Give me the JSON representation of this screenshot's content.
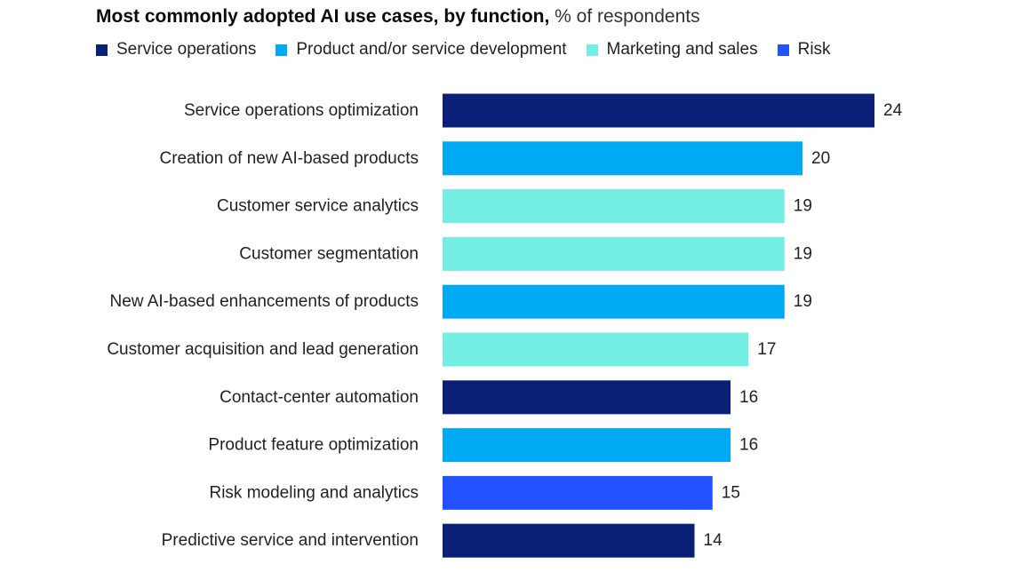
{
  "chart_data": {
    "type": "bar",
    "orientation": "horizontal",
    "title": "Most commonly adopted AI use cases, by function,",
    "subtitle": "% of respondents",
    "legend": [
      {
        "name": "Service operations",
        "color": "#0a1f78"
      },
      {
        "name": "Product and/or service development",
        "color": "#00a9f4"
      },
      {
        "name": "Marketing and sales",
        "color": "#74ede3"
      },
      {
        "name": "Risk",
        "color": "#2251ff"
      }
    ],
    "categories": [
      "Service operations optimization",
      "Creation of new AI-based products",
      "Customer service analytics",
      "Customer segmentation",
      "New AI-based enhancements of products",
      "Customer acquisition and lead generation",
      "Contact-center automation",
      "Product feature optimization",
      "Risk modeling and analytics",
      "Predictive service and intervention"
    ],
    "values": [
      24,
      20,
      19,
      19,
      19,
      17,
      16,
      16,
      15,
      14
    ],
    "value_labels": [
      "24",
      "20",
      "19",
      "19",
      "19",
      "17",
      "16",
      "16",
      "15",
      "14"
    ],
    "functions": [
      "Service operations",
      "Product and/or service development",
      "Marketing and sales",
      "Marketing and sales",
      "Product and/or service development",
      "Marketing and sales",
      "Service operations",
      "Product and/or service development",
      "Risk",
      "Service operations"
    ],
    "xlim": [
      0,
      24
    ],
    "grid": false,
    "legend_position": "top-left"
  }
}
